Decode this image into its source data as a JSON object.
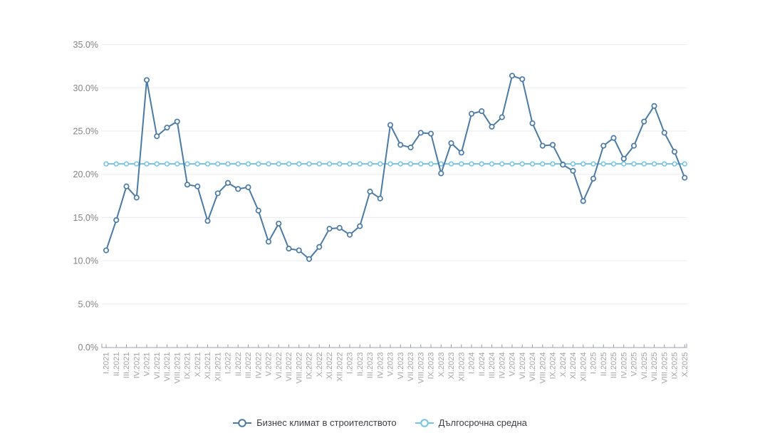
{
  "chart_data": {
    "type": "line",
    "x_axis": {
      "tick_labels": [
        "I.2021",
        "II.2021",
        "III.2021",
        "IV.2021",
        "V.2021",
        "VI.2021",
        "VII.2021",
        "VIII.2021",
        "IX.2021",
        "X.2021",
        "XI.2021",
        "XII.2021",
        "I.2022",
        "II.2022",
        "III.2022",
        "IV.2022",
        "V.2022",
        "VI.2022",
        "VII.2022",
        "VIII.2022",
        "IX.2022",
        "X.2022",
        "XI.2022",
        "XII.2022",
        "I.2023",
        "II.2023",
        "III.2023",
        "IV.2023",
        "V.2023",
        "VI.2023",
        "VII.2023",
        "VIII.2023",
        "IX.2023",
        "X.2023",
        "XI.2023",
        "XII.2023",
        "I.2024",
        "II.2024",
        "III.2024",
        "IV.2024",
        "V.2024",
        "VI.2024",
        "VII.2024",
        "VIII.2024",
        "IX.2024",
        "X.2024",
        "XI.2024",
        "XII.2024",
        "I.2025",
        "II.2025",
        "III.2025",
        "IV.2025",
        "V.2025",
        "VI.2025",
        "VII.2025",
        "VIII.2025",
        "IX.2025",
        "X.2025"
      ]
    },
    "y_axis": {
      "min": 0,
      "max": 35,
      "tick_step": 5,
      "tick_labels": [
        "0.0%",
        "5.0%",
        "10.0%",
        "15.0%",
        "20.0%",
        "25.0%",
        "30.0%",
        "35.0%"
      ]
    },
    "grid": true,
    "legend_position": "bottom",
    "series": [
      {
        "name": "Бизнес климат в строителството",
        "type": "line_markers",
        "color": "#4b7aa6",
        "values": [
          11.2,
          14.7,
          18.6,
          17.3,
          30.9,
          24.4,
          25.4,
          26.1,
          18.8,
          18.6,
          14.6,
          17.8,
          19.0,
          18.3,
          18.5,
          15.8,
          12.2,
          14.3,
          11.4,
          11.2,
          10.2,
          11.6,
          13.7,
          13.8,
          13.0,
          14.0,
          18.0,
          17.2,
          25.7,
          23.4,
          23.1,
          24.8,
          24.7,
          20.1,
          23.6,
          22.5,
          27.0,
          27.3,
          25.5,
          26.6,
          31.4,
          31.0,
          25.9,
          23.3,
          23.4,
          21.1,
          20.4,
          16.9,
          19.5,
          23.3,
          24.2,
          21.8,
          23.3,
          26.1,
          27.9,
          24.8,
          22.6,
          19.6
        ]
      },
      {
        "name": "Дългосрочна средна",
        "type": "line_markers",
        "color": "#74c3e7",
        "constant_value": 21.2
      }
    ]
  },
  "colors": {
    "background": "#ffffff",
    "grid": "#e9ebf3",
    "axis": "#999fa8",
    "y_label": "#848484",
    "x_label": "#a3a3a3",
    "legend_text": "#3e3e46",
    "marker_fill": "#ffffff"
  }
}
